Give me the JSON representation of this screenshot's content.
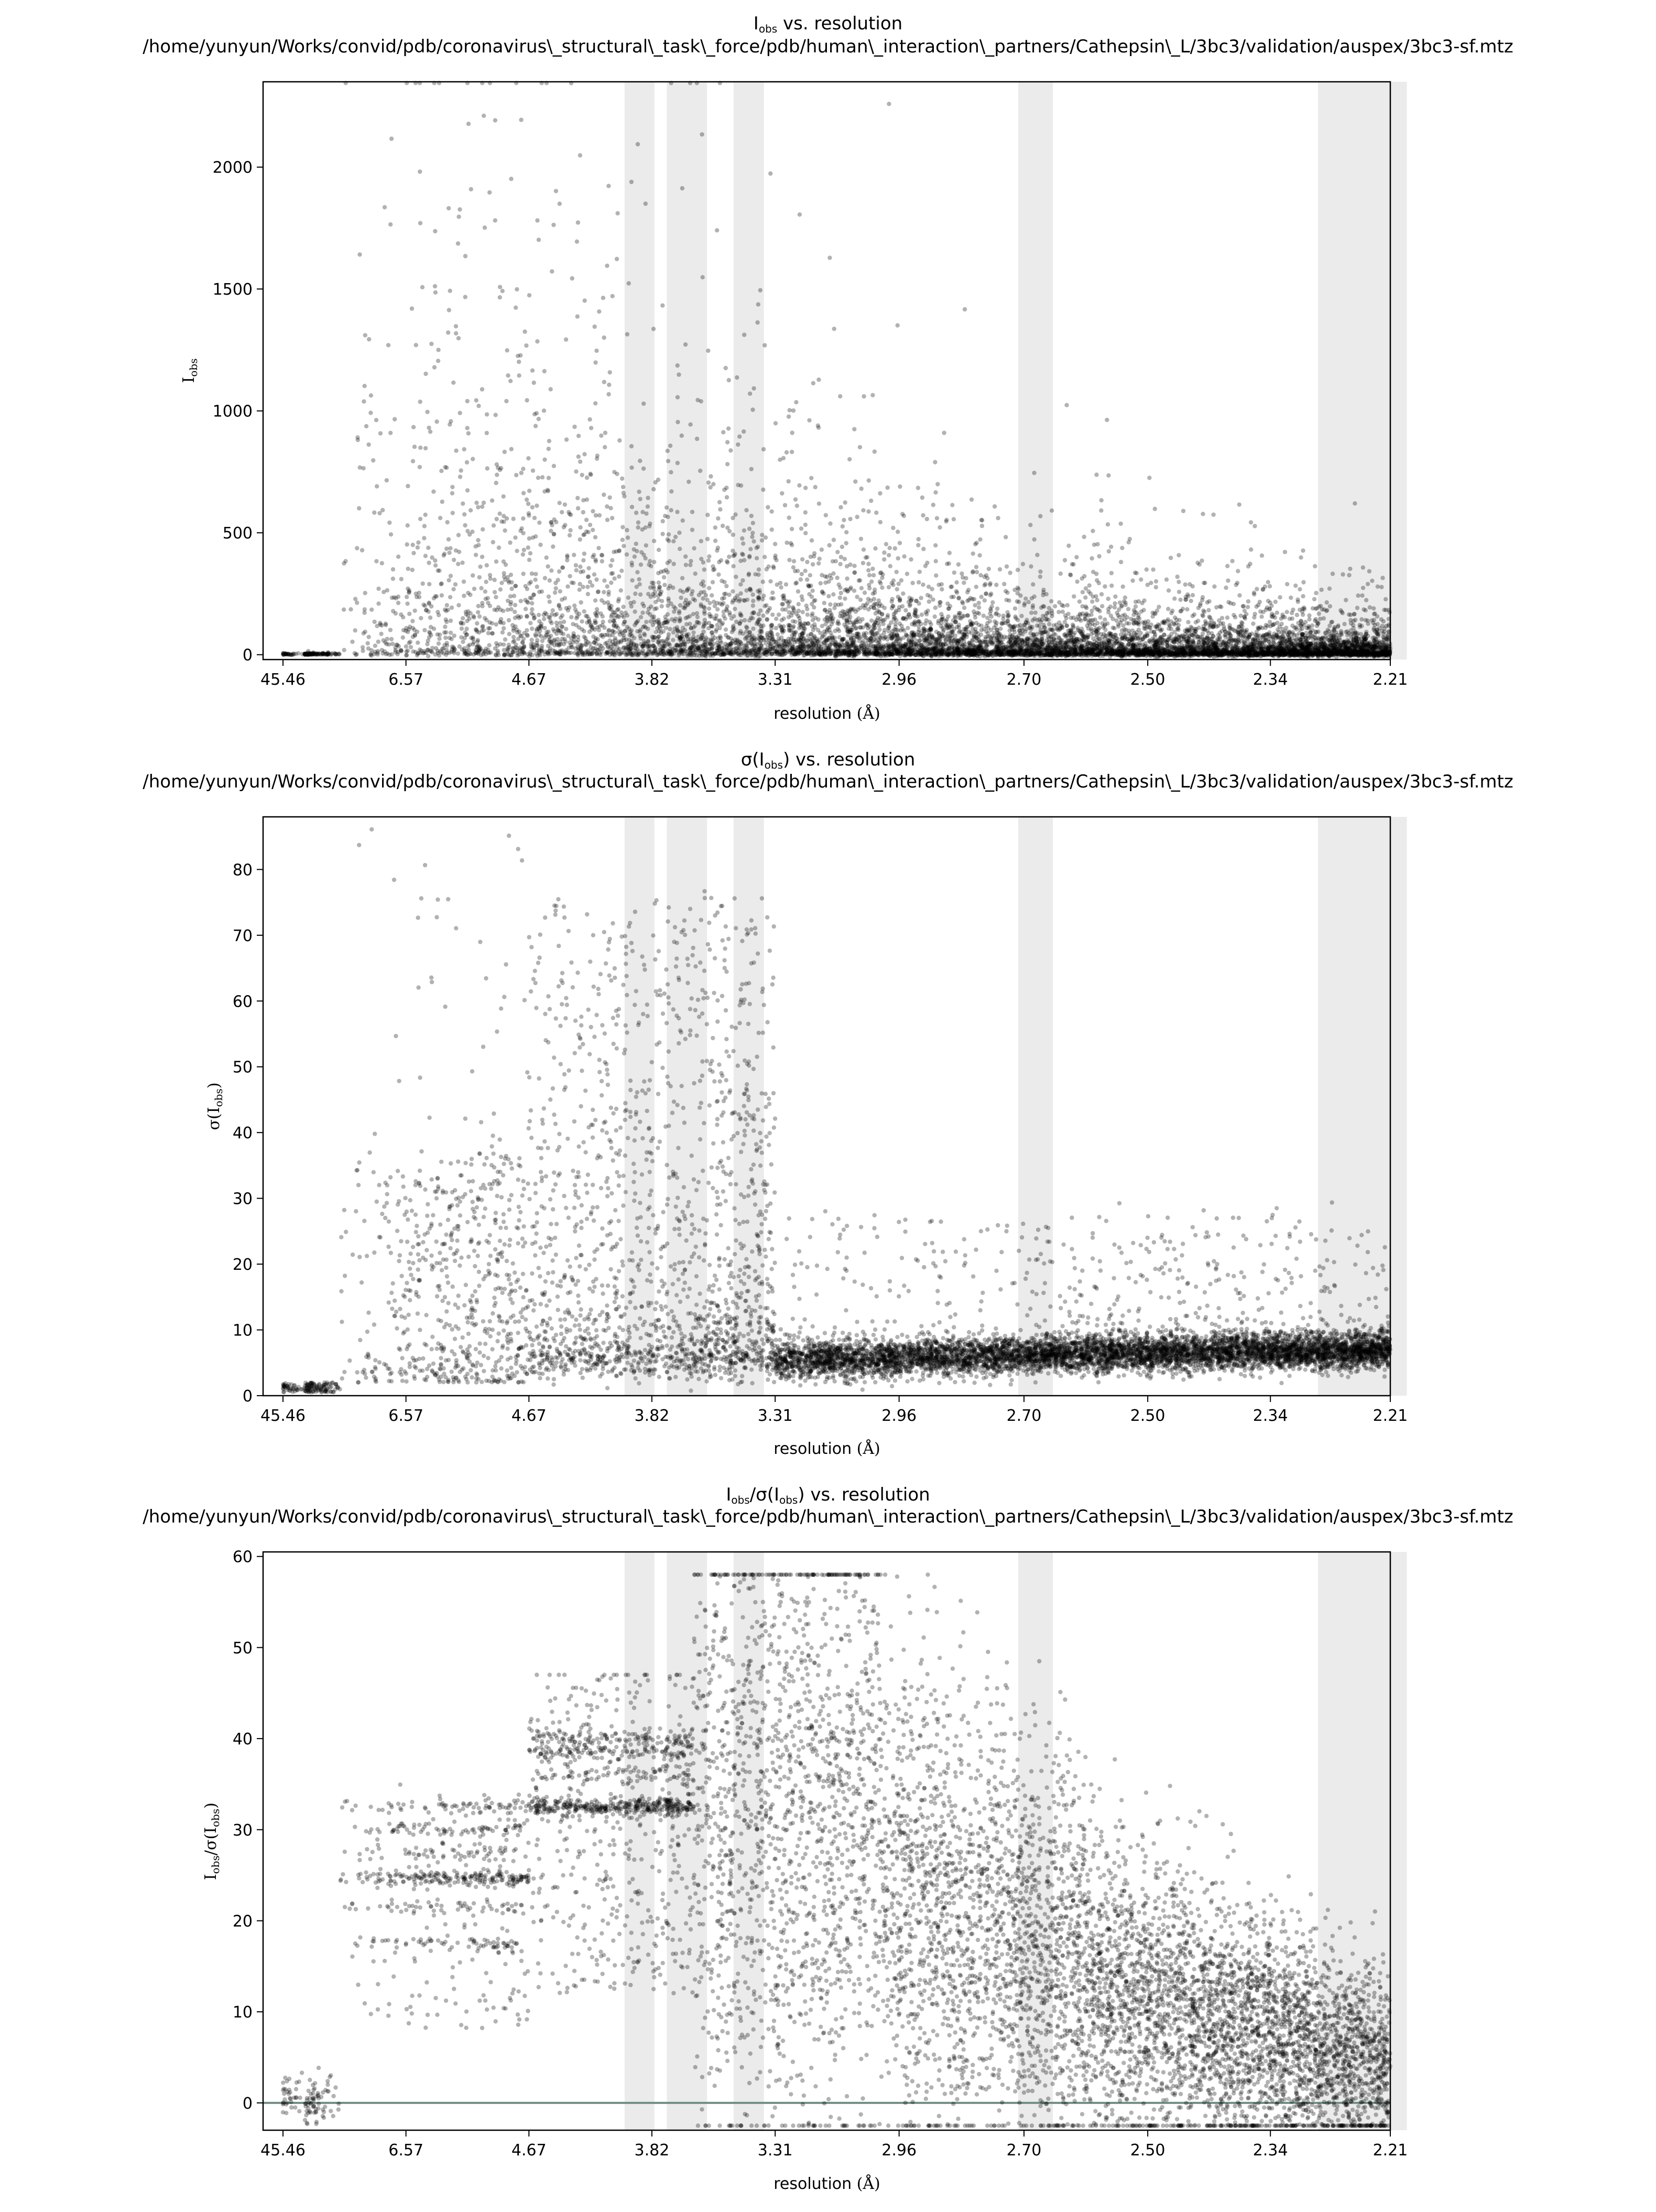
{
  "x_axis_tick_labels": [
    "45.46",
    "6.57",
    "4.67",
    "3.82",
    "3.31",
    "2.96",
    "2.70",
    "2.50",
    "2.34",
    "2.21"
  ],
  "ice_ring_bands_1_over_d2": [
    [
      0.0635,
      0.069
    ],
    [
      0.0713,
      0.0787
    ],
    [
      0.0836,
      0.0892
    ],
    [
      0.1361,
      0.1425
    ],
    [
      0.1914,
      0.2078
    ]
  ],
  "style": {
    "point_color": "#000000",
    "point_opacity": 0.3,
    "band_color": "#ebebeb",
    "zero_line_color": "#708e85",
    "frame_color": "#000000"
  },
  "chart_data": [
    {
      "type": "scatter",
      "title": {
        "main": "I",
        "sub": "obs",
        "tail": " vs. resolution"
      },
      "path": "/home/yunyun/Works/convid/pdb/coronavirus\\_structural\\_task\\_force/pdb/human\\_interaction\\_partners/Cathepsin\\_L/3bc3/validation/auspex/3bc3-sf.mtz",
      "xlabel": {
        "text": "resolution ",
        "unit": "(Å)"
      },
      "ylabel": {
        "main": "I",
        "sub": "obs"
      },
      "x_scale": "1/d^2 (tick labels show d in Å)",
      "xlim_d": [
        45.46,
        2.21
      ],
      "ylim": [
        -20,
        2350
      ],
      "yticks": [
        0,
        500,
        1000,
        1500,
        2000
      ],
      "zero_line": false,
      "points_shown": "approximately 30000 reflections",
      "trend": "mean intensity falls from roughly 400 near 6 Å to roughly 30 near 2.21 Å; spread is widest at low resolution; values near 0 below 10 Å",
      "range_summary": [
        {
          "d_range": "45.46-10",
          "y_typical": [
            0,
            10
          ]
        },
        {
          "d_range": "10-4.67",
          "y_typical": [
            0,
            1100
          ],
          "y_max": 2350
        },
        {
          "d_range": "4.67-3.31",
          "y_typical": [
            0,
            900
          ],
          "y_max": 2350
        },
        {
          "d_range": "3.31-2.70",
          "y_typical": [
            0,
            350
          ],
          "y_max": 1500
        },
        {
          "d_range": "2.70-2.21",
          "y_typical": [
            0,
            120
          ],
          "y_max": 1230
        }
      ]
    },
    {
      "type": "scatter",
      "title": {
        "main": "σ(I",
        "sub": "obs",
        "tail": ") vs. resolution"
      },
      "path": "/home/yunyun/Works/convid/pdb/coronavirus\\_structural\\_task\\_force/pdb/human\\_interaction\\_partners/Cathepsin\\_L/3bc3/validation/auspex/3bc3-sf.mtz",
      "xlabel": {
        "text": "resolution ",
        "unit": "(Å)"
      },
      "ylabel": {
        "main": "σ(I",
        "sub": "obs",
        "tail": ")"
      },
      "x_scale": "1/d^2 (tick labels show d in Å)",
      "xlim_d": [
        45.46,
        2.21
      ],
      "ylim": [
        0,
        88
      ],
      "yticks": [
        0,
        10,
        20,
        30,
        40,
        50,
        60,
        70,
        80
      ],
      "zero_line": false,
      "points_shown": "approximately 30000 reflections",
      "trend": "dense band near 5-8 across resolution, rising slightly to about 7 at 2.21 Å; large scatter up to 88 at low resolution",
      "range_summary": [
        {
          "d_range": "45.46-10",
          "y_typical": [
            0,
            2
          ]
        },
        {
          "d_range": "10-4.67",
          "y_typical": [
            2,
            40
          ],
          "y_max": 88
        },
        {
          "d_range": "4.67-3.31",
          "y_typical": [
            4,
            30
          ],
          "y_max": 88
        },
        {
          "d_range": "3.31-2.70",
          "y_typical": [
            4,
            9
          ],
          "y_max": 45
        },
        {
          "d_range": "2.70-2.21",
          "y_typical": [
            4,
            10
          ],
          "y_max": 30
        }
      ]
    },
    {
      "type": "scatter",
      "title": {
        "main": "I",
        "sub": "obs",
        "mid": "/σ(I",
        "sub2": "obs",
        "tail": ") vs. resolution"
      },
      "path": "/home/yunyun/Works/convid/pdb/coronavirus\\_structural\\_task\\_force/pdb/human\\_interaction\\_partners/Cathepsin\\_L/3bc3/validation/auspex/3bc3-sf.mtz",
      "xlabel": {
        "text": "resolution ",
        "unit": "(Å)"
      },
      "ylabel": {
        "main": "I",
        "sub": "obs",
        "mid": "/σ(I",
        "sub2": "obs",
        "tail": ")"
      },
      "x_scale": "1/d^2 (tick labels show d in Å)",
      "xlim_d": [
        45.46,
        2.21
      ],
      "ylim": [
        -3,
        60.5
      ],
      "yticks": [
        0,
        10,
        20,
        30,
        40,
        50,
        60
      ],
      "zero_line": true,
      "points_shown": "approximately 30000 reflections",
      "trend": "discrete horizontal bands at about 17.5, 21.5, 24.7, 27.5, 30 and 32.5 between 10 and 4.67 Å, bands at about 32.5 and 38.5 between 4.67 and 3.6 Å, then broad scatter up to 58 declining toward about 3 at 2.21 Å",
      "range_summary": [
        {
          "d_range": "45.46-10",
          "y_typical": [
            -2,
            2
          ]
        },
        {
          "d_range": "10-4.67",
          "y_typical": [
            17.5,
            30
          ],
          "y_max": 35
        },
        {
          "d_range": "4.67-3.31",
          "y_typical": [
            25,
            40
          ],
          "y_max": 52
        },
        {
          "d_range": "3.31-2.70",
          "y_typical": [
            10,
            35
          ],
          "y_max": 58
        },
        {
          "d_range": "2.70-2.21",
          "y_typical": [
            0,
            12
          ],
          "y_max": 56
        }
      ]
    }
  ]
}
